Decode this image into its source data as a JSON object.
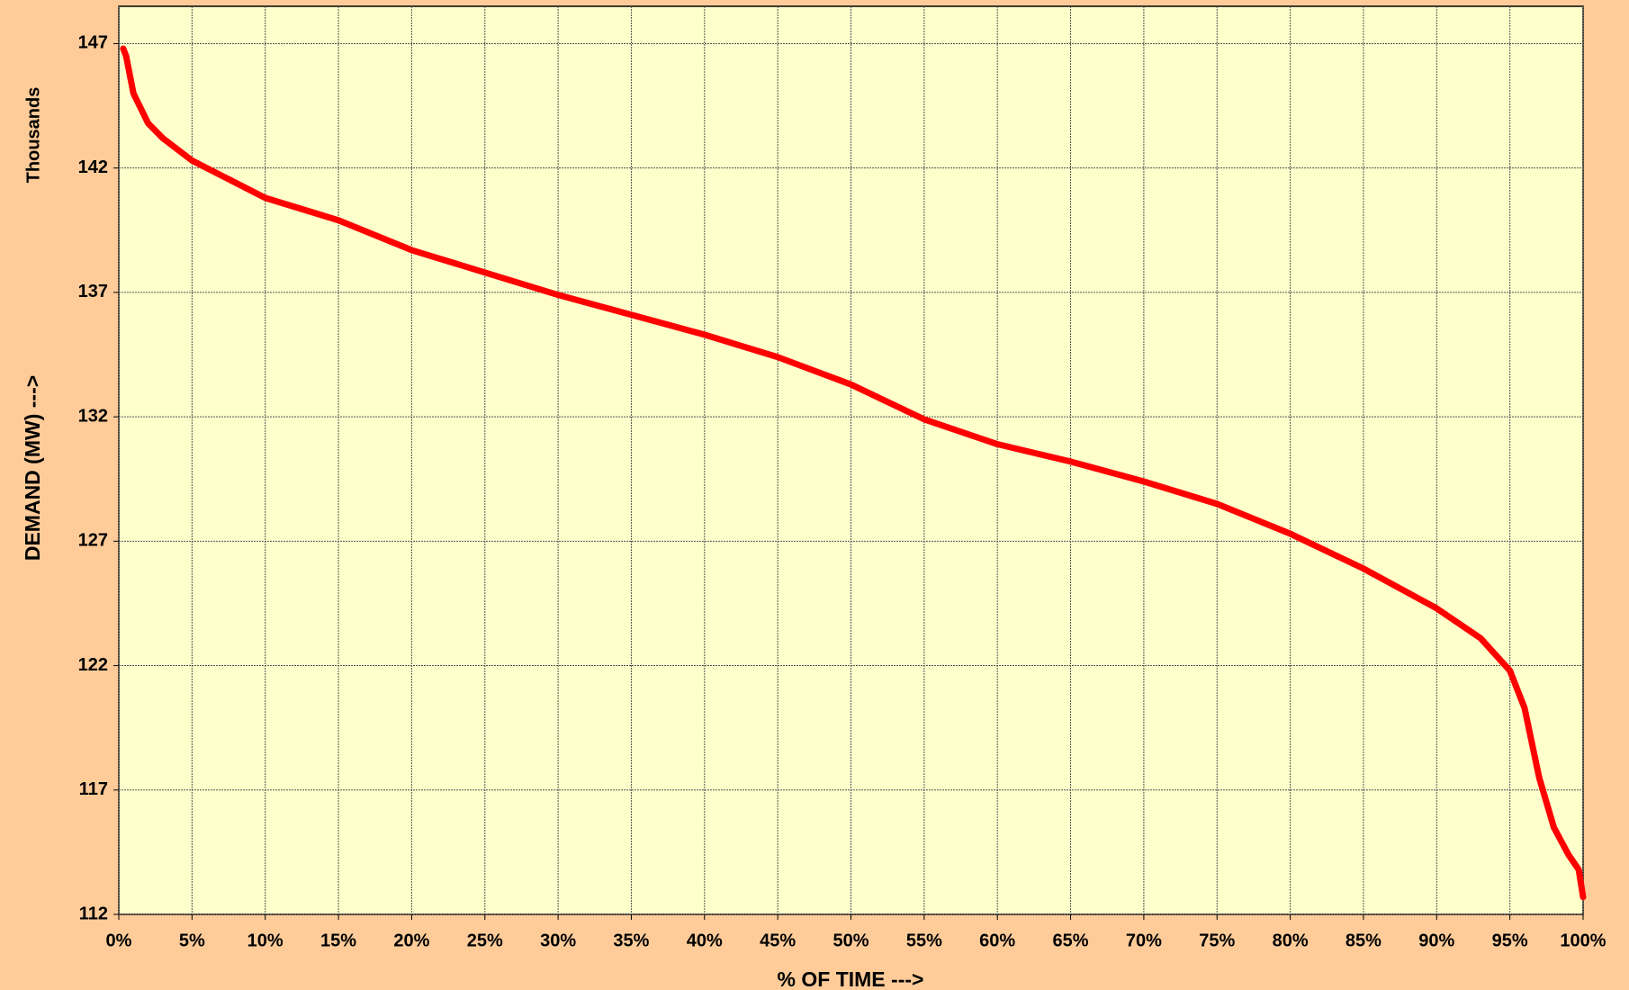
{
  "chart_data": {
    "type": "line",
    "ylabel": "DEMAND (MW) --->",
    "yunit": "Thousands",
    "xlabel": "% OF TIME --->",
    "series": [
      {
        "name": "Demand",
        "color": "#ff0000",
        "x": [
          0.3,
          0.5,
          1,
          2,
          3,
          5,
          10,
          15,
          20,
          25,
          30,
          35,
          40,
          45,
          50,
          55,
          60,
          65,
          70,
          75,
          80,
          85,
          90,
          93,
          95,
          96,
          97,
          98,
          99,
          99.7,
          100
        ],
        "values": [
          146.8,
          146.5,
          145.0,
          143.8,
          143.2,
          142.3,
          140.8,
          139.9,
          138.7,
          137.8,
          136.9,
          136.1,
          135.3,
          134.4,
          133.3,
          131.9,
          130.9,
          130.2,
          129.4,
          128.5,
          127.3,
          125.9,
          124.3,
          123.1,
          121.8,
          120.3,
          117.5,
          115.5,
          114.4,
          113.8,
          112.7
        ]
      }
    ],
    "xlim": [
      0,
      100
    ],
    "xticks": [
      {
        "value": 0,
        "label": "0%"
      },
      {
        "value": 5,
        "label": "5%"
      },
      {
        "value": 10,
        "label": "10%"
      },
      {
        "value": 15,
        "label": "15%"
      },
      {
        "value": 20,
        "label": "20%"
      },
      {
        "value": 25,
        "label": "25%"
      },
      {
        "value": 30,
        "label": "30%"
      },
      {
        "value": 35,
        "label": "35%"
      },
      {
        "value": 40,
        "label": "40%"
      },
      {
        "value": 45,
        "label": "45%"
      },
      {
        "value": 50,
        "label": "50%"
      },
      {
        "value": 55,
        "label": "55%"
      },
      {
        "value": 60,
        "label": "60%"
      },
      {
        "value": 65,
        "label": "65%"
      },
      {
        "value": 70,
        "label": "70%"
      },
      {
        "value": 75,
        "label": "75%"
      },
      {
        "value": 80,
        "label": "80%"
      },
      {
        "value": 85,
        "label": "85%"
      },
      {
        "value": 90,
        "label": "90%"
      },
      {
        "value": 95,
        "label": "95%"
      },
      {
        "value": 100,
        "label": "100%"
      }
    ],
    "ylim": [
      112,
      148.5
    ],
    "yticks": [
      112,
      117,
      122,
      127,
      132,
      137,
      142,
      147
    ],
    "grid": true
  }
}
